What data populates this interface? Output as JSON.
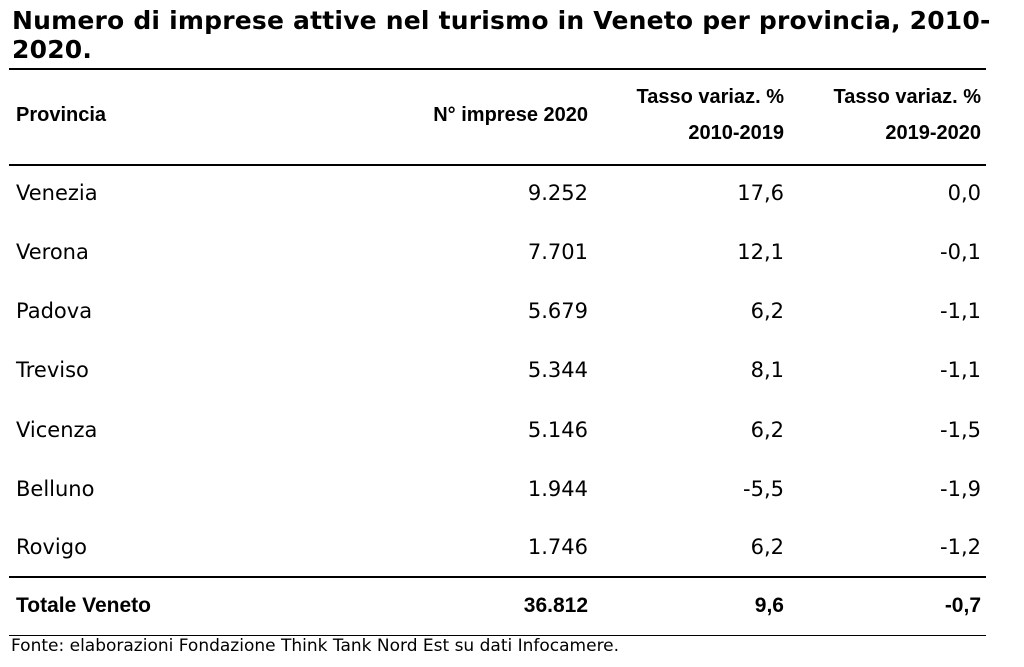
{
  "title": "Numero di imprese attive nel turismo in Veneto per provincia, 2010-2020.",
  "table": {
    "headers": {
      "provincia": "Provincia",
      "imprese": "N° imprese 2020",
      "var1_line1": "Tasso variaz. %",
      "var1_line2": "2010-2019",
      "var2_line1": "Tasso variaz. %",
      "var2_line2": "2019-2020"
    },
    "rows": [
      {
        "provincia": "Venezia",
        "imprese": "9.252",
        "var1": "17,6",
        "var2": "0,0"
      },
      {
        "provincia": "Verona",
        "imprese": "7.701",
        "var1": "12,1",
        "var2": "-0,1"
      },
      {
        "provincia": "Padova",
        "imprese": "5.679",
        "var1": "6,2",
        "var2": "-1,1"
      },
      {
        "provincia": "Treviso",
        "imprese": "5.344",
        "var1": "8,1",
        "var2": "-1,1"
      },
      {
        "provincia": "Vicenza",
        "imprese": "5.146",
        "var1": "6,2",
        "var2": "-1,5"
      },
      {
        "provincia": "Belluno",
        "imprese": "1.944",
        "var1": "-5,5",
        "var2": "-1,9"
      },
      {
        "provincia": "Rovigo",
        "imprese": "1.746",
        "var1": "6,2",
        "var2": "-1,2"
      }
    ],
    "total": {
      "provincia": "Totale Veneto",
      "imprese": "36.812",
      "var1": "9,6",
      "var2": "-0,7"
    }
  },
  "source": "Fonte: elaborazioni Fondazione Think Tank Nord Est su dati Infocamere."
}
